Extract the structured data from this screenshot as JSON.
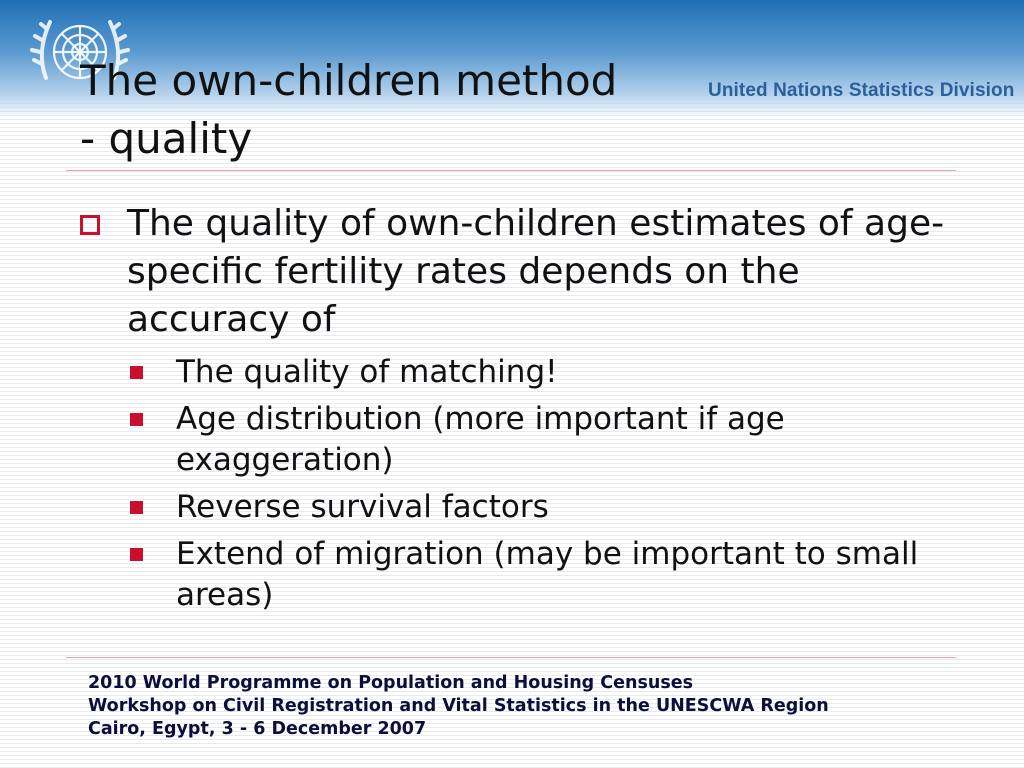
{
  "header": {
    "org_name": "United Nations Statistics Division",
    "emblem_icon": "un-emblem-icon",
    "band_color": "#1f6fb5"
  },
  "slide": {
    "title_line1": "The own-children method",
    "title_line2": "- quality",
    "bullet": {
      "text": "The quality of own-children estimates of age-specific fertility rates depends on the accuracy of",
      "marker_icon": "hollow-square-icon",
      "subbullets": [
        "The quality of matching!",
        "Age distribution (more important if age exaggeration)",
        "Reverse survival factors",
        "Extend of migration (may be important to small areas)"
      ],
      "subbullet_marker_icon": "filled-square-icon"
    },
    "accent_color": "#c8102e"
  },
  "footer": {
    "line1": "2010 World Programme on Population and Housing Censuses",
    "line2": "Workshop on Civil Registration and Vital Statistics in the UNESCWA Region",
    "line3": "Cairo, Egypt, 3 - 6 December 2007"
  }
}
